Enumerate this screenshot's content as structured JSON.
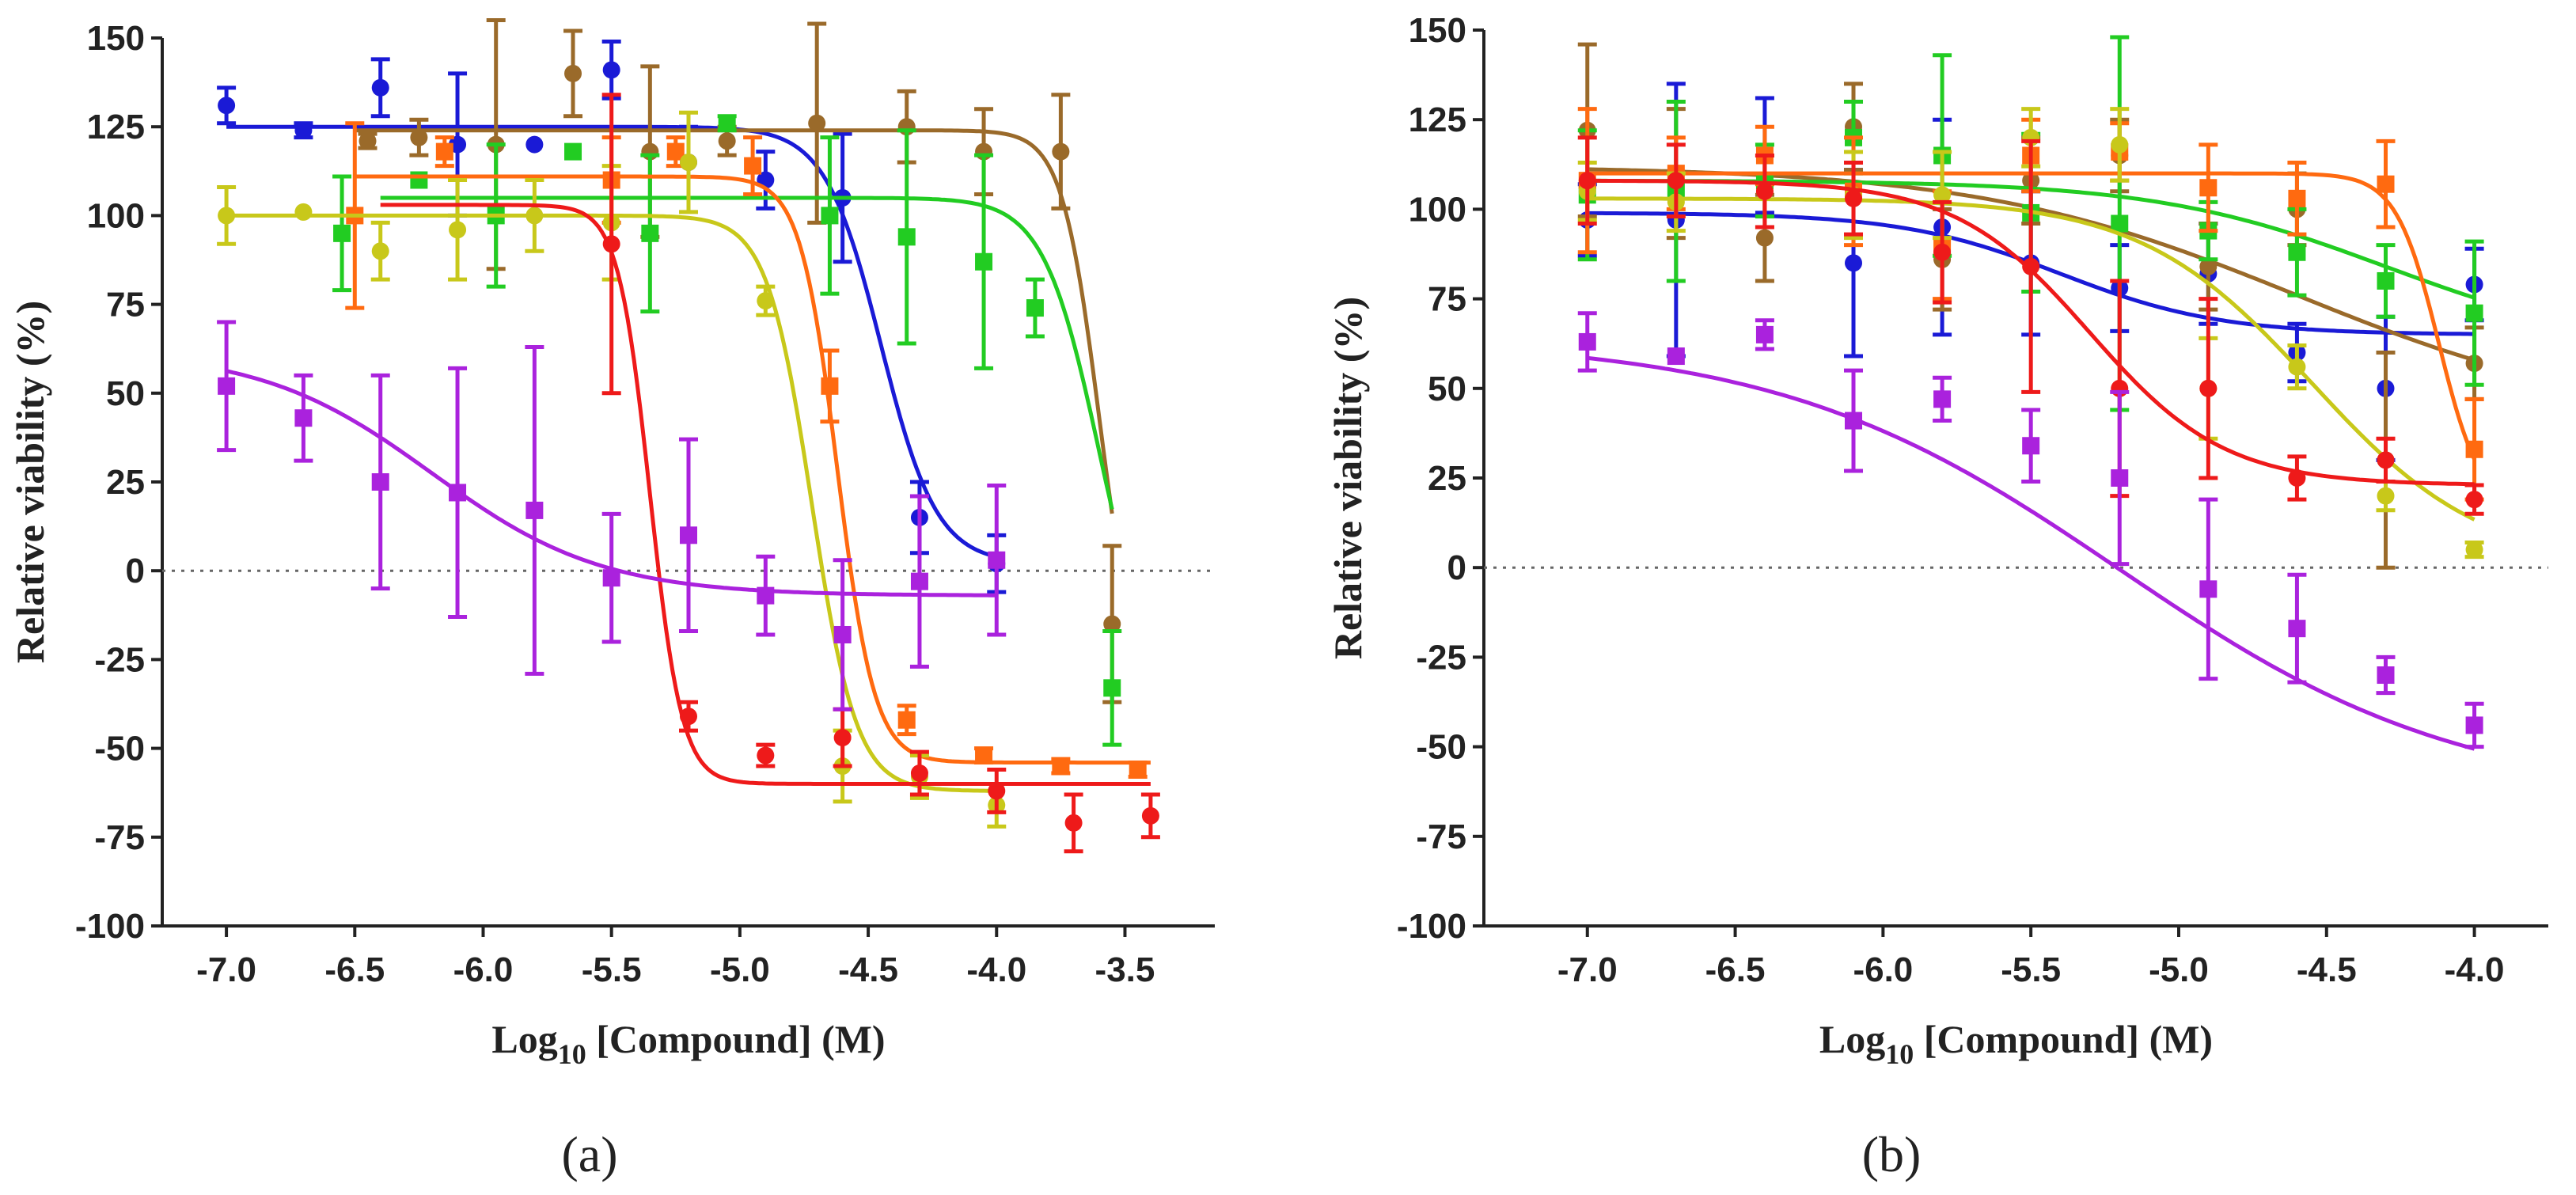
{
  "chart_data": [
    {
      "id": "a",
      "type": "line",
      "panel_label": "(a)",
      "xlabel_prefix": "Log",
      "xlabel_sub": "10",
      "xlabel_suffix": " [Compound] (M)",
      "ylabel": "Relative viability (%)",
      "xlim": [
        -7.25,
        -3.15
      ],
      "ylim": [
        -100,
        150
      ],
      "xticks": [
        -7.0,
        -6.5,
        -6.0,
        -5.5,
        -5.0,
        -4.5,
        -4.0,
        -3.5
      ],
      "xtick_labels": [
        "-7.0",
        "-6.5",
        "-6.0",
        "-5.5",
        "-5.0",
        "-4.5",
        "-4.0",
        "-3.5"
      ],
      "yticks": [
        -100,
        -75,
        -50,
        -25,
        0,
        25,
        50,
        75,
        100,
        125,
        150
      ],
      "ytick_labels": [
        "-100",
        "-75",
        "-50",
        "-25",
        "0",
        "25",
        "50",
        "75",
        "100",
        "125",
        "150"
      ],
      "zero_line": true,
      "series": [
        {
          "name": "blue",
          "color": "#1a1ad6",
          "marker": "circle",
          "top": 125,
          "bottom": 2,
          "logic50": -4.45,
          "hill": -4.0,
          "xrange": [
            -7.0,
            -4.0
          ],
          "points": [
            [
              -7.0,
              131,
              5
            ],
            [
              -6.7,
              124,
              2
            ],
            [
              -6.4,
              136,
              8
            ],
            [
              -6.1,
              120,
              20
            ],
            [
              -5.8,
              120,
              0
            ],
            [
              -5.5,
              141,
              8
            ],
            [
              -5.2,
              115,
              10
            ],
            [
              -4.9,
              110,
              8
            ],
            [
              -4.6,
              105,
              18
            ],
            [
              -4.3,
              15,
              10
            ],
            [
              -4.0,
              2,
              8
            ]
          ]
        },
        {
          "name": "brown",
          "color": "#9a6a2a",
          "marker": "circle",
          "top": 124,
          "bottom": -38,
          "logic50": -3.6,
          "hill": -6.0,
          "xrange": [
            -6.5,
            -3.55
          ],
          "points": [
            [
              -6.45,
              121,
              2
            ],
            [
              -6.25,
              122,
              5
            ],
            [
              -5.95,
              120,
              35
            ],
            [
              -5.65,
              140,
              12
            ],
            [
              -5.35,
              118,
              24
            ],
            [
              -5.05,
              121,
              4
            ],
            [
              -4.7,
              126,
              28
            ],
            [
              -4.35,
              125,
              10
            ],
            [
              -4.05,
              118,
              12
            ],
            [
              -3.75,
              118,
              16
            ],
            [
              -3.55,
              -15,
              22
            ]
          ]
        },
        {
          "name": "green",
          "color": "#22cc22",
          "marker": "square",
          "top": 105,
          "bottom": -38,
          "logic50": -3.6,
          "hill": -4.0,
          "xrange": [
            -6.4,
            -3.55
          ],
          "points": [
            [
              -6.55,
              95,
              16
            ],
            [
              -6.25,
              110,
              0
            ],
            [
              -5.95,
              100,
              20
            ],
            [
              -5.65,
              118,
              0
            ],
            [
              -5.35,
              95,
              22
            ],
            [
              -5.05,
              126,
              2
            ],
            [
              -4.65,
              100,
              22
            ],
            [
              -4.35,
              94,
              30
            ],
            [
              -4.05,
              87,
              30
            ],
            [
              -3.85,
              74,
              8
            ],
            [
              -3.55,
              -33,
              16
            ]
          ]
        },
        {
          "name": "orange",
          "color": "#ff6a10",
          "marker": "square",
          "top": 111,
          "bottom": -54,
          "logic50": -4.62,
          "hill": -6.0,
          "xrange": [
            -6.5,
            -3.4
          ],
          "points": [
            [
              -6.5,
              100,
              26
            ],
            [
              -6.15,
              118,
              4
            ],
            [
              -5.5,
              110,
              12
            ],
            [
              -5.25,
              118,
              4
            ],
            [
              -4.95,
              114,
              8
            ],
            [
              -4.65,
              52,
              10
            ],
            [
              -4.35,
              -42,
              4
            ],
            [
              -4.05,
              -52,
              2
            ],
            [
              -3.75,
              -55,
              2
            ],
            [
              -3.45,
              -56,
              2
            ]
          ]
        },
        {
          "name": "yellow",
          "color": "#c8c81a",
          "marker": "circle",
          "top": 100,
          "bottom": -62,
          "logic50": -4.72,
          "hill": -5.0,
          "xrange": [
            -7.0,
            -4.0
          ],
          "points": [
            [
              -7.0,
              100,
              8
            ],
            [
              -6.7,
              101,
              0
            ],
            [
              -6.4,
              90,
              8
            ],
            [
              -6.1,
              96,
              14
            ],
            [
              -5.8,
              100,
              10
            ],
            [
              -5.5,
              98,
              16
            ],
            [
              -5.2,
              115,
              14
            ],
            [
              -4.9,
              76,
              4
            ],
            [
              -4.6,
              -55,
              10
            ],
            [
              -4.3,
              -58,
              6
            ],
            [
              -4.0,
              -66,
              6
            ]
          ]
        },
        {
          "name": "red",
          "color": "#ee1a1a",
          "marker": "circle",
          "top": 103,
          "bottom": -60,
          "logic50": -5.35,
          "hill": -7.0,
          "xrange": [
            -6.4,
            -3.4
          ],
          "points": [
            [
              -5.5,
              92,
              42
            ],
            [
              -5.2,
              -41,
              4
            ],
            [
              -4.9,
              -52,
              3
            ],
            [
              -4.6,
              -47,
              8
            ],
            [
              -4.3,
              -57,
              6
            ],
            [
              -4.0,
              -62,
              6
            ],
            [
              -3.7,
              -71,
              8
            ],
            [
              -3.4,
              -69,
              6
            ]
          ]
        },
        {
          "name": "purple",
          "color": "#aa22dd",
          "marker": "square",
          "top": 62,
          "bottom": -7,
          "logic50": -6.2,
          "hill": -1.3,
          "xrange": [
            -7.0,
            -4.0
          ],
          "points": [
            [
              -7.0,
              52,
              18
            ],
            [
              -6.7,
              43,
              12
            ],
            [
              -6.4,
              25,
              30
            ],
            [
              -6.1,
              22,
              35
            ],
            [
              -5.8,
              17,
              46
            ],
            [
              -5.5,
              -2,
              18
            ],
            [
              -5.2,
              10,
              27
            ],
            [
              -4.9,
              -7,
              11
            ],
            [
              -4.6,
              -18,
              21
            ],
            [
              -4.3,
              -3,
              24
            ],
            [
              -4.0,
              3,
              21
            ]
          ]
        }
      ]
    },
    {
      "id": "b",
      "type": "line",
      "panel_label": "(b)",
      "xlabel_prefix": "Log",
      "xlabel_sub": "10",
      "xlabel_suffix": " [Compound] (M)",
      "ylabel": "Relative viability (%)",
      "xlim": [
        -7.35,
        -3.75
      ],
      "ylim": [
        -100,
        150
      ],
      "xticks": [
        -7.0,
        -6.5,
        -6.0,
        -5.5,
        -5.0,
        -4.5,
        -4.0
      ],
      "xtick_labels": [
        "-7.0",
        "-6.5",
        "-6.0",
        "-5.5",
        "-5.0",
        "-4.5",
        "-4.0"
      ],
      "yticks": [
        -100,
        -75,
        -50,
        -25,
        0,
        25,
        50,
        75,
        100,
        125,
        150
      ],
      "ytick_labels": [
        "-100",
        "-75",
        "-50",
        "-25",
        "0",
        "25",
        "50",
        "75",
        "100",
        "125",
        "150"
      ],
      "zero_line": true,
      "series": [
        {
          "name": "blue",
          "color": "#1a1ad6",
          "marker": "circle",
          "top": 99,
          "bottom": 65,
          "logic50": -5.4,
          "hill": -1.6,
          "xrange": [
            -7.0,
            -4.0
          ],
          "points": [
            [
              -7.0,
              97,
              10
            ],
            [
              -6.7,
              97,
              38
            ],
            [
              -6.4,
              115,
              16
            ],
            [
              -6.1,
              85,
              26
            ],
            [
              -5.8,
              95,
              30
            ],
            [
              -5.5,
              85,
              20
            ],
            [
              -5.2,
              78,
              12
            ],
            [
              -4.9,
              82,
              14
            ],
            [
              -4.6,
              60,
              8
            ],
            [
              -4.3,
              50,
              20
            ],
            [
              -4.0,
              79,
              10
            ]
          ]
        },
        {
          "name": "brown",
          "color": "#9a6a2a",
          "marker": "circle",
          "top": 112,
          "bottom": 40,
          "logic50": -4.6,
          "hill": -0.8,
          "xrange": [
            -7.0,
            -4.0
          ],
          "points": [
            [
              -7.0,
              122,
              24
            ],
            [
              -6.7,
              110,
              18
            ],
            [
              -6.4,
              92,
              12
            ],
            [
              -6.1,
              123,
              12
            ],
            [
              -5.8,
              86,
              14
            ],
            [
              -5.5,
              108,
              12
            ],
            [
              -5.2,
              115,
              10
            ],
            [
              -4.9,
              84,
              12
            ],
            [
              -4.6,
              100,
              10
            ],
            [
              -4.3,
              30,
              30
            ],
            [
              -4.0,
              57,
              10
            ]
          ]
        },
        {
          "name": "green",
          "color": "#22cc22",
          "marker": "square",
          "top": 108,
          "bottom": 60,
          "logic50": -4.3,
          "hill": -1.1,
          "xrange": [
            -7.0,
            -4.0
          ],
          "points": [
            [
              -7.0,
              104,
              18
            ],
            [
              -6.7,
              105,
              25
            ],
            [
              -6.4,
              108,
              10
            ],
            [
              -6.1,
              120,
              10
            ],
            [
              -5.8,
              115,
              28
            ],
            [
              -5.5,
              99,
              22
            ],
            [
              -5.2,
              96,
              52
            ],
            [
              -4.9,
              94,
              8
            ],
            [
              -4.6,
              88,
              12
            ],
            [
              -4.3,
              80,
              10
            ],
            [
              -4.0,
              71,
              20
            ]
          ]
        },
        {
          "name": "orange",
          "color": "#ff6a10",
          "marker": "square",
          "top": 110,
          "bottom": 15,
          "logic50": -4.12,
          "hill": -6.0,
          "xrange": [
            -7.0,
            -4.0
          ],
          "points": [
            [
              -7.0,
              108,
              20
            ],
            [
              -6.7,
              110,
              10
            ],
            [
              -6.4,
              115,
              8
            ],
            [
              -6.1,
              105,
              15
            ],
            [
              -5.8,
              90,
              15
            ],
            [
              -5.5,
              115,
              10
            ],
            [
              -5.2,
              116,
              8
            ],
            [
              -4.9,
              106,
              12
            ],
            [
              -4.6,
              103,
              10
            ],
            [
              -4.3,
              107,
              12
            ],
            [
              -4.0,
              33,
              14
            ]
          ]
        },
        {
          "name": "yellow",
          "color": "#c8c81a",
          "marker": "circle",
          "top": 103,
          "bottom": 0,
          "logic50": -4.55,
          "hill": -1.5,
          "xrange": [
            -7.0,
            -4.0
          ],
          "points": [
            [
              -7.0,
              105,
              8
            ],
            [
              -6.7,
              102,
              8
            ],
            [
              -6.4,
              105,
              10
            ],
            [
              -6.1,
              104,
              12
            ],
            [
              -5.8,
              104,
              12
            ],
            [
              -5.5,
              120,
              8
            ],
            [
              -5.2,
              118,
              10
            ],
            [
              -4.9,
              50,
              14
            ],
            [
              -4.6,
              56,
              6
            ],
            [
              -4.3,
              20,
              4
            ],
            [
              -4.0,
              5,
              2
            ]
          ]
        },
        {
          "name": "red",
          "color": "#ee1a1a",
          "marker": "circle",
          "top": 108,
          "bottom": 23,
          "logic50": -5.3,
          "hill": -1.9,
          "xrange": [
            -7.0,
            -4.0
          ],
          "points": [
            [
              -7.0,
              108,
              12
            ],
            [
              -6.7,
              108,
              10
            ],
            [
              -6.4,
              105,
              10
            ],
            [
              -6.1,
              103,
              10
            ],
            [
              -5.8,
              88,
              14
            ],
            [
              -5.5,
              84,
              35
            ],
            [
              -5.2,
              50,
              30
            ],
            [
              -4.9,
              50,
              25
            ],
            [
              -4.6,
              25,
              6
            ],
            [
              -4.3,
              30,
              6
            ],
            [
              -4.0,
              19,
              4
            ]
          ]
        },
        {
          "name": "purple",
          "color": "#aa22dd",
          "marker": "square",
          "top": 64,
          "bottom": -65,
          "logic50": -5.2,
          "hill": -0.75,
          "xrange": [
            -7.0,
            -4.0
          ],
          "points": [
            [
              -7.0,
              63,
              8
            ],
            [
              -6.7,
              59,
              0
            ],
            [
              -6.4,
              65,
              4
            ],
            [
              -6.1,
              41,
              14
            ],
            [
              -5.8,
              47,
              6
            ],
            [
              -5.5,
              34,
              10
            ],
            [
              -5.2,
              25,
              24
            ],
            [
              -4.9,
              -6,
              25
            ],
            [
              -4.6,
              -17,
              15
            ],
            [
              -4.3,
              -30,
              5
            ],
            [
              -4.0,
              -44,
              6
            ]
          ]
        }
      ]
    }
  ]
}
